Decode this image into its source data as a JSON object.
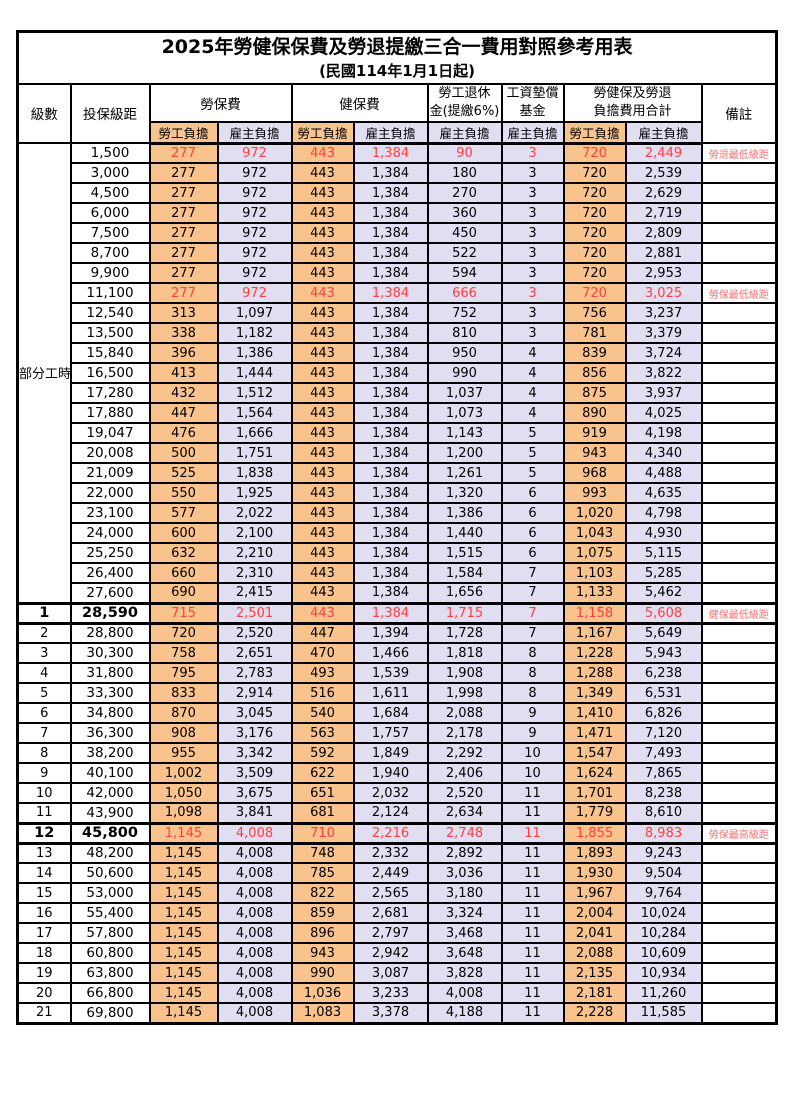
{
  "title": "2025年勞健保保費及勞退提繳三合一費用對照參考用表",
  "subtitle": "(民國114年1月1日起)",
  "header": {
    "level": "級數",
    "bracket": "投保級距",
    "labor": "勞保費",
    "health": "健保費",
    "pension1": "勞工退休",
    "pension2": "金(提繳6%)",
    "fund1": "工資墊償",
    "fund2": "基金",
    "total1": "勞健保及勞退",
    "total2": "負擔費用合計",
    "note": "備註",
    "employee": "勞工負擔",
    "employer": "雇主負擔"
  },
  "colors": {
    "employee_bg": "#F9C38E",
    "employer_bg": "#E0DEF0",
    "highlight_text": "#FF4040",
    "note_text": "#FF7070"
  },
  "table": {
    "part_time_label": "部分工時",
    "rows": [
      {
        "part": true,
        "bracket": "1,500",
        "fees": [
          "277",
          "972",
          "443",
          "1,384",
          "90",
          "3",
          "720",
          "2,449"
        ],
        "note": "勞退最低級距",
        "red": true
      },
      {
        "part": true,
        "bracket": "3,000",
        "fees": [
          "277",
          "972",
          "443",
          "1,384",
          "180",
          "3",
          "720",
          "2,539"
        ],
        "note": ""
      },
      {
        "part": true,
        "bracket": "4,500",
        "fees": [
          "277",
          "972",
          "443",
          "1,384",
          "270",
          "3",
          "720",
          "2,629"
        ],
        "note": ""
      },
      {
        "part": true,
        "bracket": "6,000",
        "fees": [
          "277",
          "972",
          "443",
          "1,384",
          "360",
          "3",
          "720",
          "2,719"
        ],
        "note": ""
      },
      {
        "part": true,
        "bracket": "7,500",
        "fees": [
          "277",
          "972",
          "443",
          "1,384",
          "450",
          "3",
          "720",
          "2,809"
        ],
        "note": ""
      },
      {
        "part": true,
        "bracket": "8,700",
        "fees": [
          "277",
          "972",
          "443",
          "1,384",
          "522",
          "3",
          "720",
          "2,881"
        ],
        "note": ""
      },
      {
        "part": true,
        "bracket": "9,900",
        "fees": [
          "277",
          "972",
          "443",
          "1,384",
          "594",
          "3",
          "720",
          "2,953"
        ],
        "note": ""
      },
      {
        "part": true,
        "bracket": "11,100",
        "fees": [
          "277",
          "972",
          "443",
          "1,384",
          "666",
          "3",
          "720",
          "3,025"
        ],
        "note": "勞保最低級距",
        "red": true
      },
      {
        "part": true,
        "bracket": "12,540",
        "fees": [
          "313",
          "1,097",
          "443",
          "1,384",
          "752",
          "3",
          "756",
          "3,237"
        ],
        "note": ""
      },
      {
        "part": true,
        "bracket": "13,500",
        "fees": [
          "338",
          "1,182",
          "443",
          "1,384",
          "810",
          "3",
          "781",
          "3,379"
        ],
        "note": ""
      },
      {
        "part": true,
        "bracket": "15,840",
        "fees": [
          "396",
          "1,386",
          "443",
          "1,384",
          "950",
          "4",
          "839",
          "3,724"
        ],
        "note": ""
      },
      {
        "part": true,
        "bracket": "16,500",
        "fees": [
          "413",
          "1,444",
          "443",
          "1,384",
          "990",
          "4",
          "856",
          "3,822"
        ],
        "note": ""
      },
      {
        "part": true,
        "bracket": "17,280",
        "fees": [
          "432",
          "1,512",
          "443",
          "1,384",
          "1,037",
          "4",
          "875",
          "3,937"
        ],
        "note": ""
      },
      {
        "part": true,
        "bracket": "17,880",
        "fees": [
          "447",
          "1,564",
          "443",
          "1,384",
          "1,073",
          "4",
          "890",
          "4,025"
        ],
        "note": ""
      },
      {
        "part": true,
        "bracket": "19,047",
        "fees": [
          "476",
          "1,666",
          "443",
          "1,384",
          "1,143",
          "5",
          "919",
          "4,198"
        ],
        "note": ""
      },
      {
        "part": true,
        "bracket": "20,008",
        "fees": [
          "500",
          "1,751",
          "443",
          "1,384",
          "1,200",
          "5",
          "943",
          "4,340"
        ],
        "note": ""
      },
      {
        "part": true,
        "bracket": "21,009",
        "fees": [
          "525",
          "1,838",
          "443",
          "1,384",
          "1,261",
          "5",
          "968",
          "4,488"
        ],
        "note": ""
      },
      {
        "part": true,
        "bracket": "22,000",
        "fees": [
          "550",
          "1,925",
          "443",
          "1,384",
          "1,320",
          "6",
          "993",
          "4,635"
        ],
        "note": ""
      },
      {
        "part": true,
        "bracket": "23,100",
        "fees": [
          "577",
          "2,022",
          "443",
          "1,384",
          "1,386",
          "6",
          "1,020",
          "4,798"
        ],
        "note": ""
      },
      {
        "part": true,
        "bracket": "24,000",
        "fees": [
          "600",
          "2,100",
          "443",
          "1,384",
          "1,440",
          "6",
          "1,043",
          "4,930"
        ],
        "note": ""
      },
      {
        "part": true,
        "bracket": "25,250",
        "fees": [
          "632",
          "2,210",
          "443",
          "1,384",
          "1,515",
          "6",
          "1,075",
          "5,115"
        ],
        "note": ""
      },
      {
        "part": true,
        "bracket": "26,400",
        "fees": [
          "660",
          "2,310",
          "443",
          "1,384",
          "1,584",
          "7",
          "1,103",
          "5,285"
        ],
        "note": ""
      },
      {
        "part": true,
        "bracket": "27,600",
        "fees": [
          "690",
          "2,415",
          "443",
          "1,384",
          "1,656",
          "7",
          "1,133",
          "5,462"
        ],
        "note": ""
      },
      {
        "level": "1",
        "bracket": "28,590",
        "fees": [
          "715",
          "2,501",
          "443",
          "1,384",
          "1,715",
          "7",
          "1,158",
          "5,608"
        ],
        "note": "健保最低級距",
        "red": true,
        "bold": true
      },
      {
        "level": "2",
        "bracket": "28,800",
        "fees": [
          "720",
          "2,520",
          "447",
          "1,394",
          "1,728",
          "7",
          "1,167",
          "5,649"
        ],
        "note": ""
      },
      {
        "level": "3",
        "bracket": "30,300",
        "fees": [
          "758",
          "2,651",
          "470",
          "1,466",
          "1,818",
          "8",
          "1,228",
          "5,943"
        ],
        "note": ""
      },
      {
        "level": "4",
        "bracket": "31,800",
        "fees": [
          "795",
          "2,783",
          "493",
          "1,539",
          "1,908",
          "8",
          "1,288",
          "6,238"
        ],
        "note": ""
      },
      {
        "level": "5",
        "bracket": "33,300",
        "fees": [
          "833",
          "2,914",
          "516",
          "1,611",
          "1,998",
          "8",
          "1,349",
          "6,531"
        ],
        "note": ""
      },
      {
        "level": "6",
        "bracket": "34,800",
        "fees": [
          "870",
          "3,045",
          "540",
          "1,684",
          "2,088",
          "9",
          "1,410",
          "6,826"
        ],
        "note": ""
      },
      {
        "level": "7",
        "bracket": "36,300",
        "fees": [
          "908",
          "3,176",
          "563",
          "1,757",
          "2,178",
          "9",
          "1,471",
          "7,120"
        ],
        "note": ""
      },
      {
        "level": "8",
        "bracket": "38,200",
        "fees": [
          "955",
          "3,342",
          "592",
          "1,849",
          "2,292",
          "10",
          "1,547",
          "7,493"
        ],
        "note": ""
      },
      {
        "level": "9",
        "bracket": "40,100",
        "fees": [
          "1,002",
          "3,509",
          "622",
          "1,940",
          "2,406",
          "10",
          "1,624",
          "7,865"
        ],
        "note": ""
      },
      {
        "level": "10",
        "bracket": "42,000",
        "fees": [
          "1,050",
          "3,675",
          "651",
          "2,032",
          "2,520",
          "11",
          "1,701",
          "8,238"
        ],
        "note": ""
      },
      {
        "level": "11",
        "bracket": "43,900",
        "fees": [
          "1,098",
          "3,841",
          "681",
          "2,124",
          "2,634",
          "11",
          "1,779",
          "8,610"
        ],
        "note": ""
      },
      {
        "level": "12",
        "bracket": "45,800",
        "fees": [
          "1,145",
          "4,008",
          "710",
          "2,216",
          "2,748",
          "11",
          "1,855",
          "8,983"
        ],
        "note": "勞保最高級距",
        "red": true,
        "bold": true
      },
      {
        "level": "13",
        "bracket": "48,200",
        "fees": [
          "1,145",
          "4,008",
          "748",
          "2,332",
          "2,892",
          "11",
          "1,893",
          "9,243"
        ],
        "note": ""
      },
      {
        "level": "14",
        "bracket": "50,600",
        "fees": [
          "1,145",
          "4,008",
          "785",
          "2,449",
          "3,036",
          "11",
          "1,930",
          "9,504"
        ],
        "note": ""
      },
      {
        "level": "15",
        "bracket": "53,000",
        "fees": [
          "1,145",
          "4,008",
          "822",
          "2,565",
          "3,180",
          "11",
          "1,967",
          "9,764"
        ],
        "note": ""
      },
      {
        "level": "16",
        "bracket": "55,400",
        "fees": [
          "1,145",
          "4,008",
          "859",
          "2,681",
          "3,324",
          "11",
          "2,004",
          "10,024"
        ],
        "note": ""
      },
      {
        "level": "17",
        "bracket": "57,800",
        "fees": [
          "1,145",
          "4,008",
          "896",
          "2,797",
          "3,468",
          "11",
          "2,041",
          "10,284"
        ],
        "note": ""
      },
      {
        "level": "18",
        "bracket": "60,800",
        "fees": [
          "1,145",
          "4,008",
          "943",
          "2,942",
          "3,648",
          "11",
          "2,088",
          "10,609"
        ],
        "note": ""
      },
      {
        "level": "19",
        "bracket": "63,800",
        "fees": [
          "1,145",
          "4,008",
          "990",
          "3,087",
          "3,828",
          "11",
          "2,135",
          "10,934"
        ],
        "note": ""
      },
      {
        "level": "20",
        "bracket": "66,800",
        "fees": [
          "1,145",
          "4,008",
          "1,036",
          "3,233",
          "4,008",
          "11",
          "2,181",
          "11,260"
        ],
        "note": ""
      },
      {
        "level": "21",
        "bracket": "69,800",
        "fees": [
          "1,145",
          "4,008",
          "1,083",
          "3,378",
          "4,188",
          "11",
          "2,228",
          "11,585"
        ],
        "note": ""
      }
    ]
  }
}
